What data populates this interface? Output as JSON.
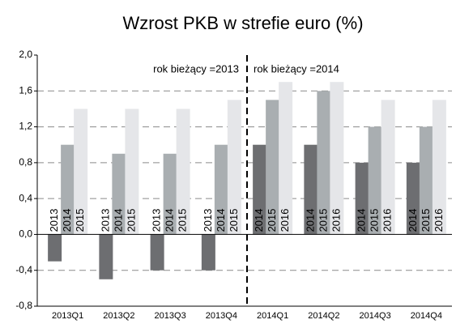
{
  "chart_data": {
    "type": "bar",
    "title": "Wzrost PKB w strefie euro (%)",
    "categories": [
      "2013Q1",
      "2013Q2",
      "2013Q3",
      "2013Q4",
      "2014Q1",
      "2014Q2",
      "2014Q3",
      "2014Q4"
    ],
    "series": [
      {
        "color": "#6d6e71",
        "values": [
          -0.3,
          -0.5,
          -0.4,
          -0.4,
          1.0,
          1.0,
          0.8,
          0.8
        ],
        "labels": [
          "2013",
          "2013",
          "2013",
          "2013",
          "2014",
          "2014",
          "2014",
          "2014"
        ]
      },
      {
        "color": "#a9aeb1",
        "values": [
          1.0,
          0.9,
          0.9,
          1.0,
          1.5,
          1.6,
          1.2,
          1.2
        ],
        "labels": [
          "2014",
          "2014",
          "2014",
          "2014",
          "2015",
          "2015",
          "2015",
          "2015"
        ]
      },
      {
        "color": "#e5e6e9",
        "values": [
          1.4,
          1.4,
          1.4,
          1.5,
          1.7,
          1.7,
          1.5,
          1.5
        ],
        "labels": [
          "2015",
          "2015",
          "2015",
          "2015",
          "2016",
          "2016",
          "2016",
          "2016"
        ]
      }
    ],
    "ylim": [
      -0.8,
      2.0
    ],
    "yticks": [
      {
        "value": -0.8,
        "label": "-0,8"
      },
      {
        "value": -0.4,
        "label": "-0,4"
      },
      {
        "value": 0,
        "label": "0,0"
      },
      {
        "value": 0.4,
        "label": "0,4"
      },
      {
        "value": 0.8,
        "label": "0,8"
      },
      {
        "value": 1.2,
        "label": "1,2"
      },
      {
        "value": 1.6,
        "label": "1,6"
      },
      {
        "value": 2.0,
        "label": "2,0"
      }
    ],
    "grid": true,
    "annotations": [
      "rok bieżący =2013",
      "rok bieżący =2014"
    ]
  }
}
